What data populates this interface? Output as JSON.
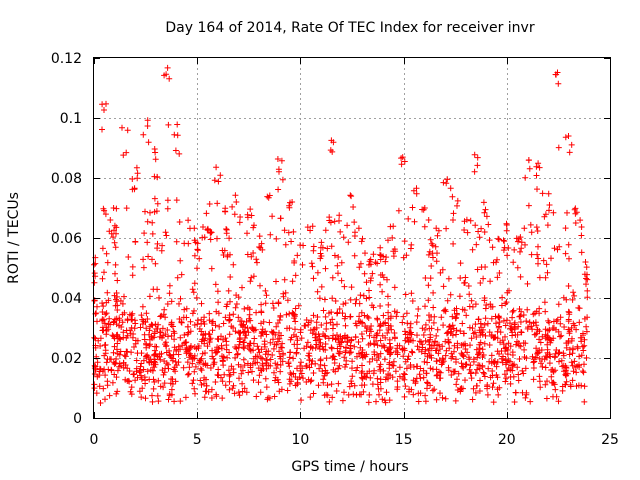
{
  "chart_data": {
    "type": "scatter",
    "title": "Day 164 of 2014, Rate Of TEC Index for receiver invr",
    "xlabel": "GPS time / hours",
    "ylabel": "ROTI / TECUs",
    "xlim": [
      0,
      25
    ],
    "ylim": [
      0,
      0.12
    ],
    "grid": true,
    "legend": "none",
    "marker": "plus",
    "series_color": "#ff0000",
    "x_ticks": [
      0,
      5,
      10,
      15,
      20,
      25
    ],
    "x_tick_labels": [
      "0",
      "5",
      "10",
      "15",
      "20",
      "25"
    ],
    "y_ticks": [
      0,
      0.02,
      0.04,
      0.06,
      0.08,
      0.1,
      0.12
    ],
    "y_tick_labels": [
      "0",
      "0.02",
      "0.04",
      "0.06",
      "0.08",
      "0.1",
      "0.12"
    ],
    "series": [
      {
        "name": "ROTI",
        "x_range": [
          0,
          23.9
        ],
        "note": "dense cloud of approximately 16000 points; upper envelope per hour given below",
        "envelope_x": [
          0,
          0.5,
          1,
          1.5,
          2,
          2.5,
          3,
          3.5,
          4,
          4.5,
          5,
          5.5,
          6,
          6.5,
          7,
          7.5,
          8,
          8.5,
          9,
          9.5,
          10,
          10.5,
          11,
          11.5,
          12,
          12.5,
          13,
          13.5,
          14,
          14.5,
          15,
          15.5,
          16,
          16.5,
          17,
          17.5,
          18,
          18.5,
          19,
          19.5,
          20,
          20.5,
          21,
          21.5,
          22,
          22.5,
          23,
          23.5,
          23.9
        ],
        "envelope_upper": [
          0.055,
          0.105,
          0.07,
          0.097,
          0.085,
          0.1,
          0.09,
          0.119,
          0.098,
          0.068,
          0.065,
          0.07,
          0.085,
          0.07,
          0.075,
          0.07,
          0.06,
          0.075,
          0.087,
          0.075,
          0.06,
          0.065,
          0.06,
          0.098,
          0.07,
          0.075,
          0.06,
          0.055,
          0.06,
          0.065,
          0.089,
          0.08,
          0.07,
          0.065,
          0.08,
          0.075,
          0.068,
          0.091,
          0.07,
          0.06,
          0.065,
          0.06,
          0.09,
          0.085,
          0.075,
          0.117,
          0.098,
          0.07,
          0.05
        ],
        "typical_low": 0.008,
        "typical_high": 0.045,
        "lower_bound_min": 0.005
      }
    ]
  }
}
